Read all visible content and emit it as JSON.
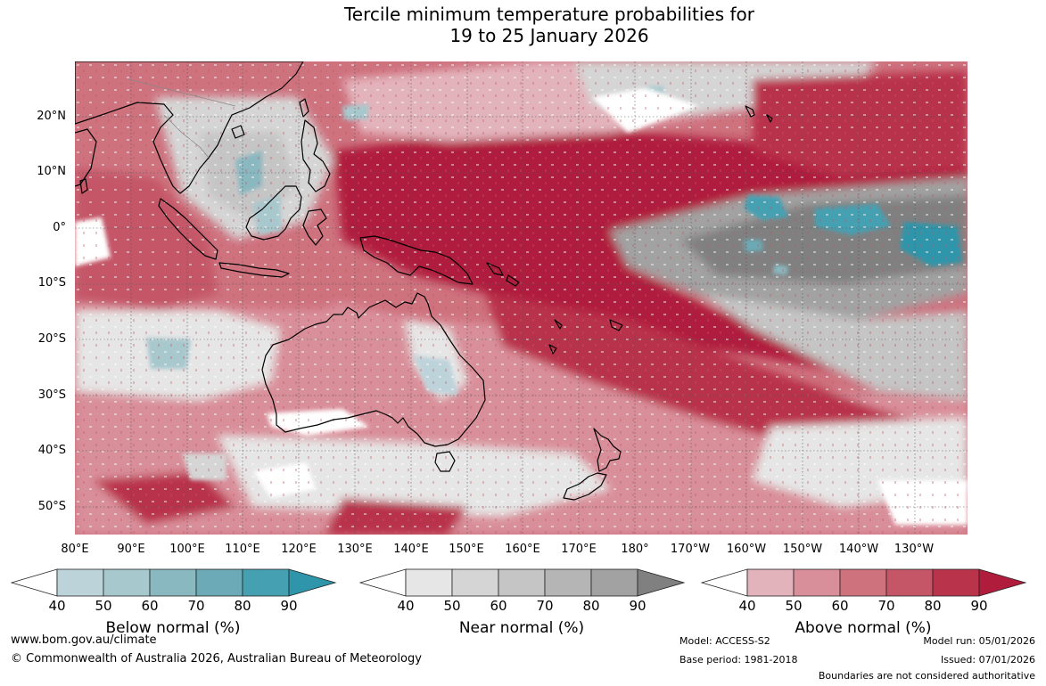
{
  "title": {
    "line1": "Tercile minimum temperature probabilities for",
    "line2": "19 to 25 January 2026"
  },
  "map": {
    "lat_labels": [
      "20°N",
      "10°N",
      "0°",
      "10°S",
      "20°S",
      "30°S",
      "40°S",
      "50°S"
    ],
    "lon_labels": [
      "80°E",
      "90°E",
      "100°E",
      "110°E",
      "120°E",
      "130°E",
      "140°E",
      "150°E",
      "160°E",
      "170°E",
      "180°",
      "170°W",
      "160°W",
      "150°W",
      "140°W",
      "130°W"
    ]
  },
  "colorbars": [
    {
      "name": "below",
      "label": "Below normal (%)",
      "ticks": [
        "40",
        "50",
        "60",
        "70",
        "80",
        "90"
      ],
      "colors": [
        "#ffffff",
        "#bdd3da",
        "#a7c8cd",
        "#8ab8c0",
        "#6baab6",
        "#45a0b2",
        "#2e95aa"
      ]
    },
    {
      "name": "near",
      "label": "Near normal (%)",
      "ticks": [
        "40",
        "50",
        "60",
        "70",
        "80",
        "90"
      ],
      "colors": [
        "#ffffff",
        "#e6e6e6",
        "#d5d5d5",
        "#c5c5c5",
        "#b5b5b5",
        "#a2a2a2",
        "#808080"
      ]
    },
    {
      "name": "above",
      "label": "Above normal (%)",
      "ticks": [
        "40",
        "50",
        "60",
        "70",
        "80",
        "90"
      ],
      "colors": [
        "#ffffff",
        "#e3b3bb",
        "#d98f9a",
        "#ce727e",
        "#c45668",
        "#b9334b",
        "#b01d3c"
      ]
    }
  ],
  "footer": {
    "website": "www.bom.gov.au/climate",
    "copyright": "© Commonwealth of Australia 2026, Australian Bureau of Meteorology",
    "model": "Model: ACCESS-S2",
    "base_period": "Base period: 1981-2018",
    "model_run": "Model run: 05/01/2026",
    "issued": "Issued: 07/01/2026",
    "disclaimer": "Boundaries are not considered authoritative"
  }
}
